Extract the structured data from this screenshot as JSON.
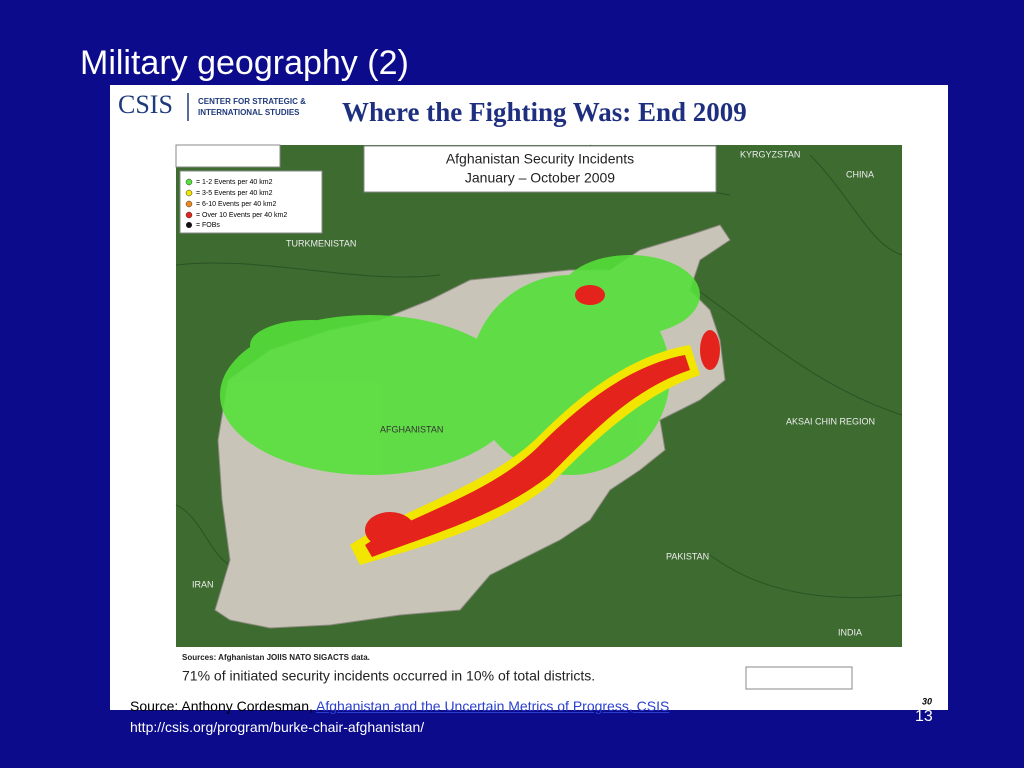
{
  "slide": {
    "title": "Military geography (2)",
    "page_number": "13"
  },
  "figure": {
    "logo": {
      "acronym": "CSIS",
      "line1": "CENTER FOR STRATEGIC &",
      "line2": "INTERNATIONAL STUDIES"
    },
    "heading": "Where the Fighting Was: End 2009",
    "map_title": [
      "Afghanistan Security Incidents",
      "January – October 2009"
    ],
    "legend": [
      "= 1-2 Events per 40 km2",
      "= 3-5 Events per 40 km2",
      "= 6-10 Events per 40 km2",
      "= Over 10 Events per 40 km2",
      "= FOBs"
    ],
    "places": [
      "KYRGYZSTAN",
      "CHINA",
      "TURKMENISTAN",
      "AFGHANISTAN",
      "AKSAI CHIN REGION",
      "PAKISTAN",
      "IRAN",
      "INDIA"
    ],
    "sources": "Sources: Afghanistan JOIIS NATO SIGACTS data.",
    "finding": "71% of initiated security incidents occurred in 10% of total districts.",
    "figure_page": "30"
  },
  "footer": {
    "source": "Source: Anthony Cordesman,",
    "link": "Afghanistan and the Uncertain Metrics of Progress, CSIS",
    "url": "http://csis.org/program/burke-chair-afghanistan/"
  }
}
